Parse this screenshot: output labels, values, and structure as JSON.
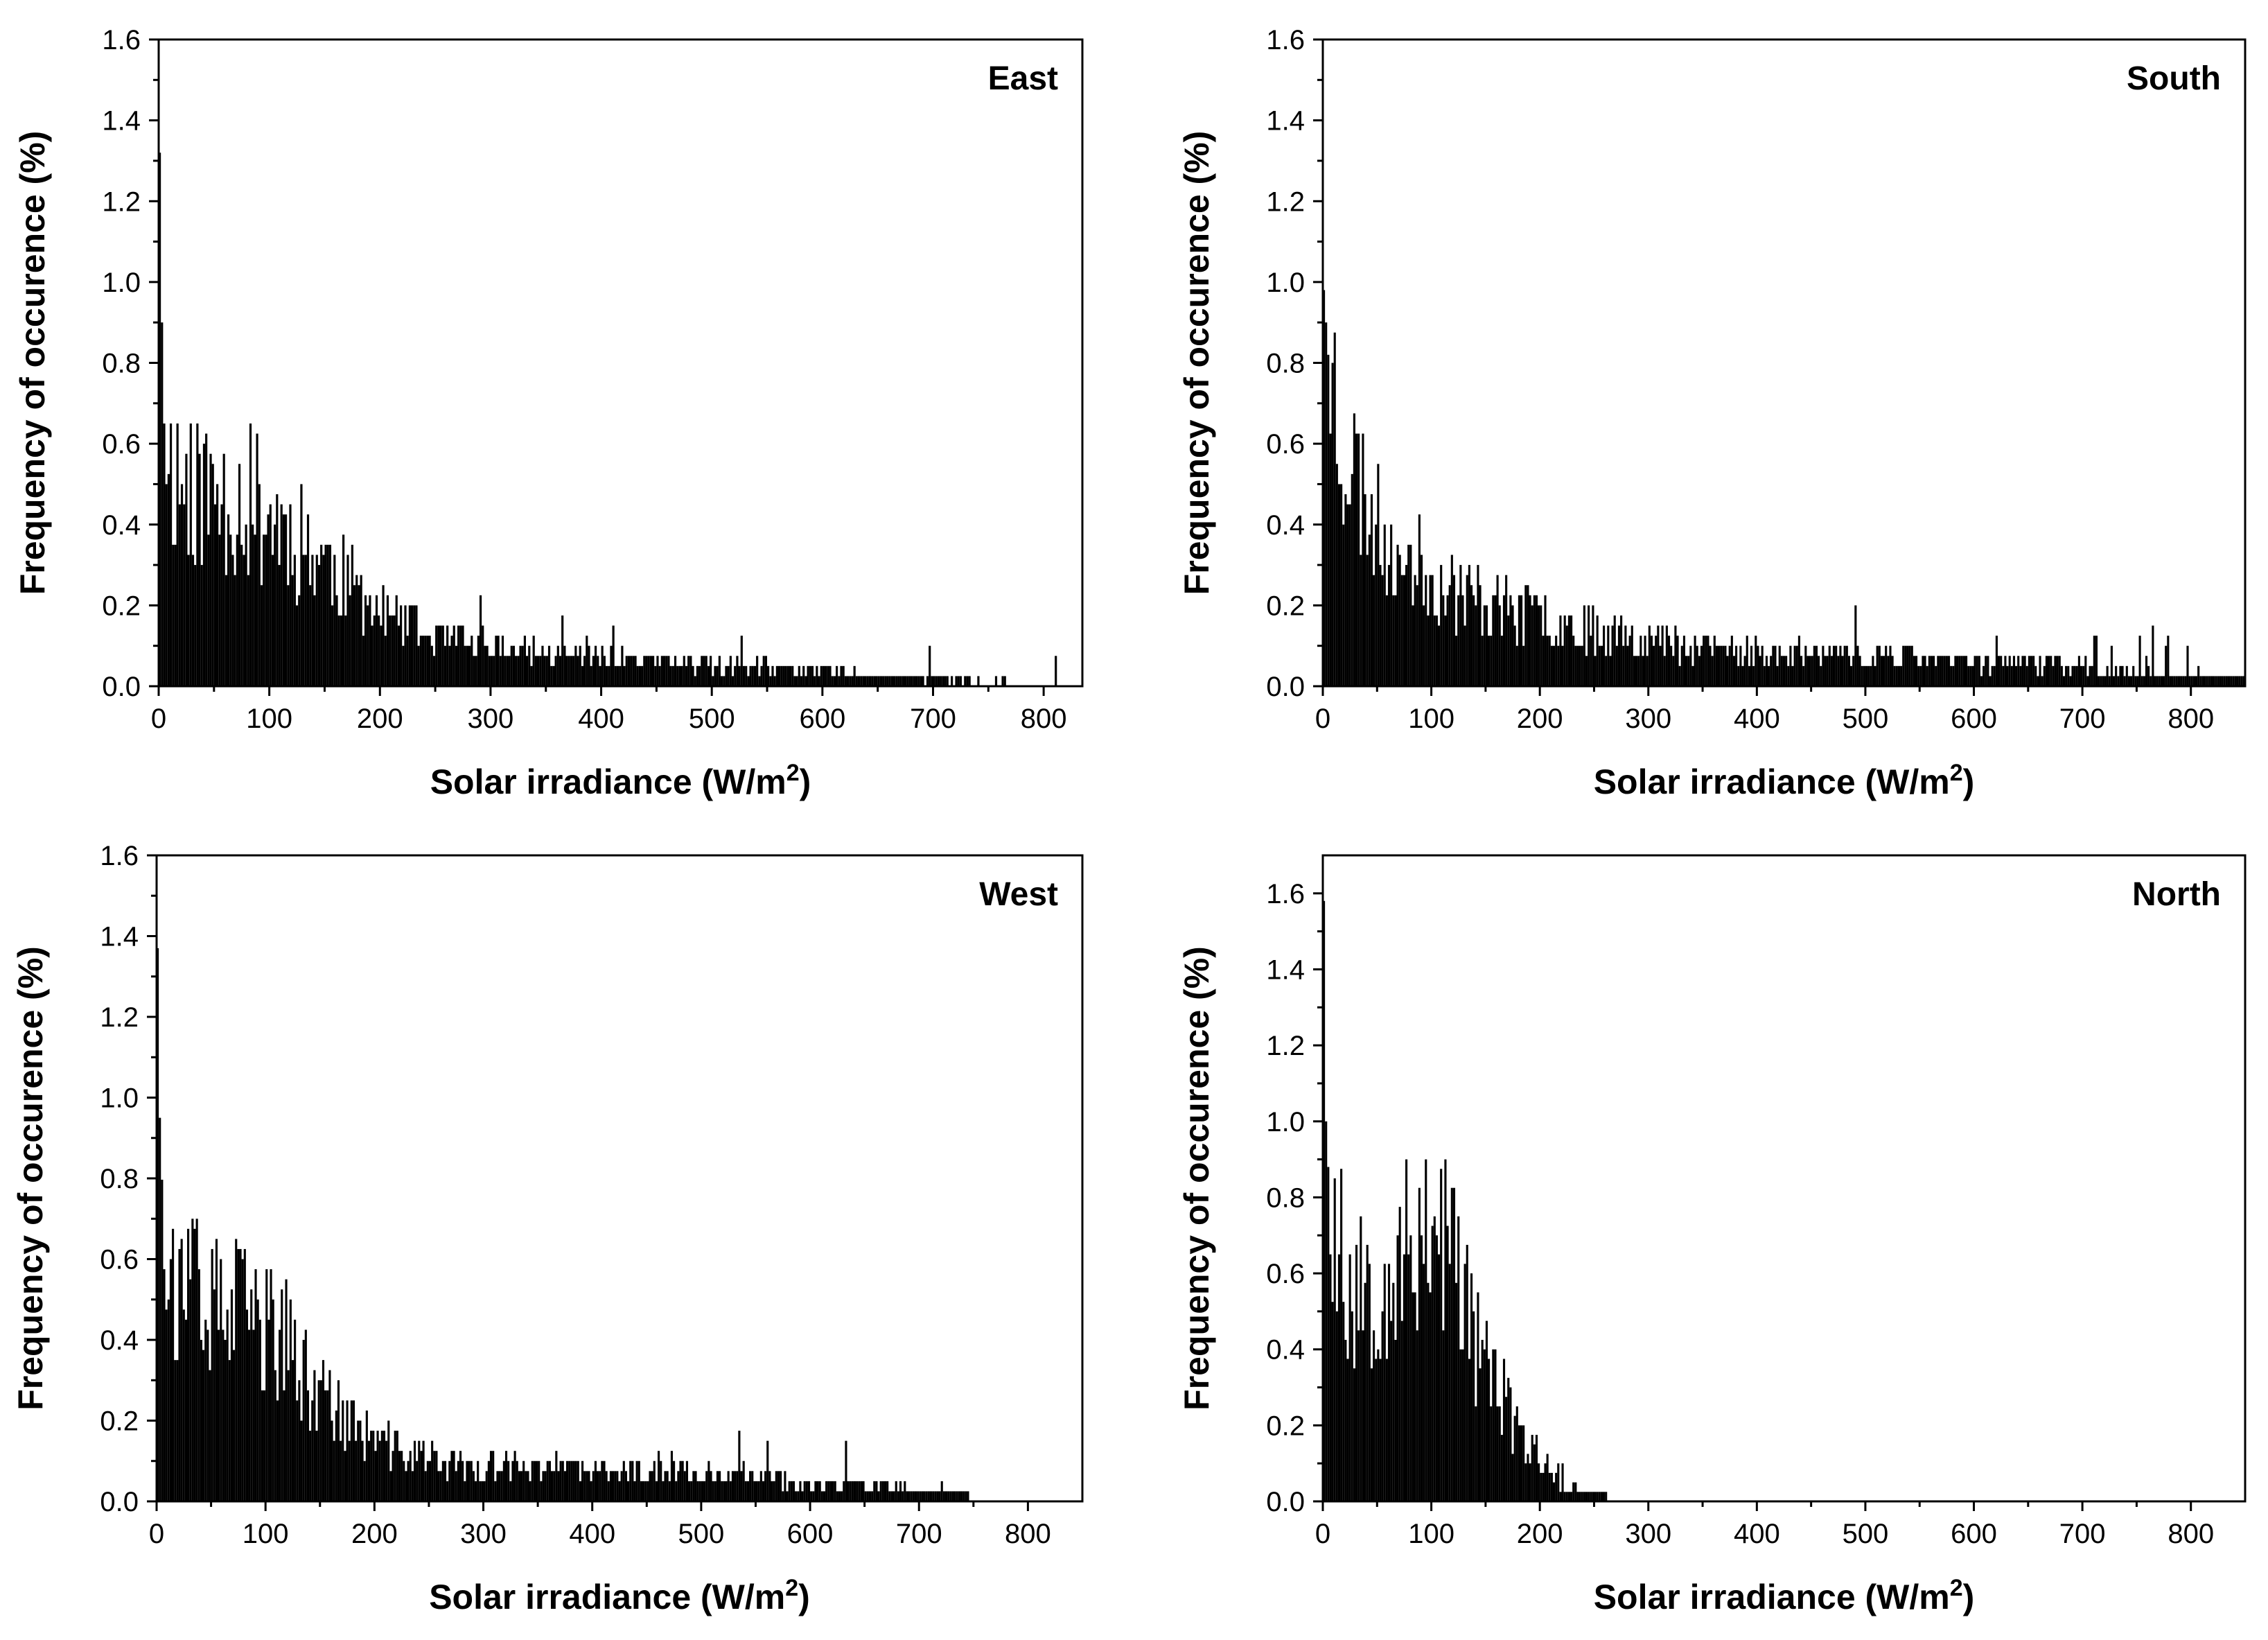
{
  "chart_data": [
    {
      "type": "bar",
      "title": "East",
      "xlabel": "Solar irradiance (W/m²)",
      "ylabel": "Frequency of occurence (%)",
      "xlim": [
        0,
        835
      ],
      "ylim": [
        0,
        1.6
      ],
      "xticks": [
        "0",
        "100",
        "200",
        "300",
        "400",
        "500",
        "600",
        "700",
        "800"
      ],
      "yticks": [
        "0.0",
        "0.2",
        "0.4",
        "0.6",
        "0.8",
        "1.0",
        "1.2",
        "1.4",
        "1.6"
      ],
      "bin_width": 2,
      "anchors": [
        [
          0,
          1.32
        ],
        [
          2,
          0.9
        ],
        [
          4,
          0.65
        ],
        [
          10,
          0.52
        ],
        [
          20,
          0.48
        ],
        [
          40,
          0.45
        ],
        [
          60,
          0.45
        ],
        [
          80,
          0.43
        ],
        [
          100,
          0.4
        ],
        [
          120,
          0.36
        ],
        [
          140,
          0.32
        ],
        [
          160,
          0.27
        ],
        [
          180,
          0.22
        ],
        [
          200,
          0.17
        ],
        [
          250,
          0.11
        ],
        [
          300,
          0.09
        ],
        [
          350,
          0.08
        ],
        [
          400,
          0.065
        ],
        [
          500,
          0.05
        ],
        [
          600,
          0.035
        ],
        [
          700,
          0.015
        ],
        [
          760,
          0.01
        ],
        [
          835,
          0.0
        ]
      ],
      "max_x": 835,
      "seed": 11
    },
    {
      "type": "bar",
      "title": "South",
      "xlabel": "Solar irradiance (W/m²)",
      "ylabel": "Frequency of occurence (%)",
      "xlim": [
        0,
        850
      ],
      "ylim": [
        0,
        1.6
      ],
      "xticks": [
        "0",
        "100",
        "200",
        "300",
        "400",
        "500",
        "600",
        "700",
        "800"
      ],
      "yticks": [
        "0.0",
        "0.2",
        "0.4",
        "0.6",
        "0.8",
        "1.0",
        "1.2",
        "1.4",
        "1.6"
      ],
      "bin_width": 2,
      "anchors": [
        [
          0,
          0.98
        ],
        [
          5,
          0.78
        ],
        [
          15,
          0.62
        ],
        [
          30,
          0.5
        ],
        [
          50,
          0.38
        ],
        [
          100,
          0.25
        ],
        [
          150,
          0.2
        ],
        [
          200,
          0.16
        ],
        [
          250,
          0.14
        ],
        [
          300,
          0.11
        ],
        [
          400,
          0.08
        ],
        [
          500,
          0.07
        ],
        [
          600,
          0.06
        ],
        [
          700,
          0.05
        ],
        [
          750,
          0.03
        ],
        [
          800,
          0.02
        ],
        [
          850,
          0.02
        ]
      ],
      "max_x": 850,
      "seed": 23
    },
    {
      "type": "bar",
      "title": "West",
      "xlabel": "Solar irradiance (W/m²)",
      "ylabel": "Frequency of occurence (%)",
      "xlim": [
        0,
        850
      ],
      "ylim": [
        0,
        1.6
      ],
      "xticks": [
        "0",
        "100",
        "200",
        "300",
        "400",
        "500",
        "600",
        "700",
        "800"
      ],
      "yticks": [
        "0.0",
        "0.2",
        "0.4",
        "0.6",
        "0.8",
        "1.0",
        "1.2",
        "1.4",
        "1.6"
      ],
      "bin_width": 2,
      "anchors": [
        [
          0,
          1.37
        ],
        [
          2,
          0.95
        ],
        [
          5,
          0.72
        ],
        [
          10,
          0.58
        ],
        [
          20,
          0.48
        ],
        [
          50,
          0.45
        ],
        [
          80,
          0.44
        ],
        [
          100,
          0.42
        ],
        [
          120,
          0.36
        ],
        [
          140,
          0.28
        ],
        [
          170,
          0.2
        ],
        [
          200,
          0.14
        ],
        [
          250,
          0.1
        ],
        [
          300,
          0.08
        ],
        [
          400,
          0.075
        ],
        [
          500,
          0.065
        ],
        [
          560,
          0.06
        ],
        [
          600,
          0.045
        ],
        [
          700,
          0.025
        ],
        [
          745,
          0.02
        ]
      ],
      "max_x": 745,
      "seed": 37
    },
    {
      "type": "bar",
      "title": "North",
      "xlabel": "Solar irradiance (W/m²)",
      "ylabel": "Frequency of occurence (%)",
      "xlim": [
        0,
        850
      ],
      "ylim": [
        0,
        1.7
      ],
      "xticks": [
        "0",
        "100",
        "200",
        "300",
        "400",
        "500",
        "600",
        "700",
        "800"
      ],
      "yticks": [
        "0.0",
        "0.2",
        "0.4",
        "0.6",
        "0.8",
        "1.0",
        "1.2",
        "1.4",
        "1.6"
      ],
      "bin_width": 2,
      "anchors": [
        [
          0,
          1.58
        ],
        [
          2,
          1.0
        ],
        [
          5,
          0.82
        ],
        [
          10,
          0.7
        ],
        [
          20,
          0.55
        ],
        [
          50,
          0.55
        ],
        [
          80,
          0.62
        ],
        [
          100,
          0.75
        ],
        [
          120,
          0.6
        ],
        [
          140,
          0.42
        ],
        [
          160,
          0.28
        ],
        [
          180,
          0.17
        ],
        [
          200,
          0.1
        ],
        [
          220,
          0.04
        ],
        [
          240,
          0.025
        ],
        [
          262,
          0.02
        ]
      ],
      "max_x": 262,
      "seed": 53
    }
  ]
}
